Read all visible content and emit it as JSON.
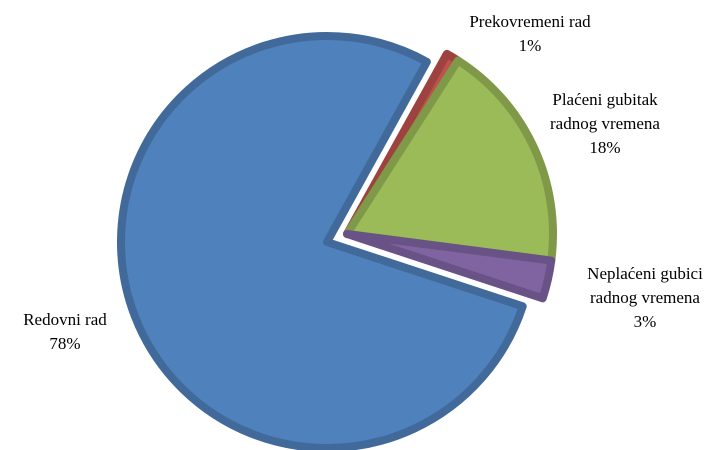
{
  "chart_data": {
    "type": "pie",
    "categories": [
      "Prekovremeni rad",
      "Plaćeni gubitak radnog vremena",
      "Neplaćeni gubici radnog vremena",
      "Redovni rad"
    ],
    "values": [
      1,
      18,
      3,
      78
    ],
    "value_labels": [
      "1%",
      "18%",
      "3%",
      "78%"
    ],
    "colors": [
      "#c0504d",
      "#9bbb59",
      "#8064a2",
      "#4f81bd"
    ]
  }
}
